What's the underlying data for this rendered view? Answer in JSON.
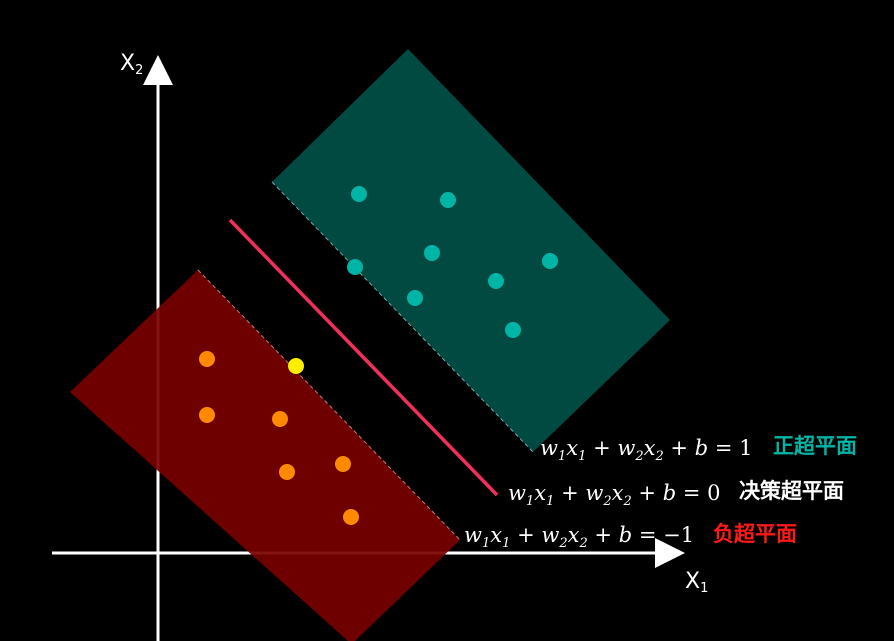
{
  "axes": {
    "y_label": "X",
    "y_sub": "2",
    "x_label": "X",
    "x_sub": "1"
  },
  "regions": {
    "positive_color": "#005048",
    "negative_color": "#770000",
    "line_color": "#f0305a"
  },
  "positive_points": {
    "color": "#00b5a5",
    "items": [
      {
        "id": "p1"
      },
      {
        "id": "p2"
      },
      {
        "id": "p3"
      },
      {
        "id": "p4"
      },
      {
        "id": "p5"
      },
      {
        "id": "p6"
      },
      {
        "id": "p7"
      },
      {
        "id": "p8"
      }
    ]
  },
  "negative_points": {
    "color": "#ff8a00",
    "support_color": "#ffee00",
    "items": [
      {
        "id": "n1"
      },
      {
        "id": "n2"
      },
      {
        "id": "n3"
      },
      {
        "id": "n4"
      },
      {
        "id": "n5"
      },
      {
        "id": "n6"
      },
      {
        "id": "n7",
        "support": true
      }
    ]
  },
  "equations": {
    "positive": {
      "rhs": "1",
      "name": "正超平面",
      "name_color": "#00b5a5"
    },
    "decision": {
      "rhs": "0",
      "name": "决策超平面",
      "name_color": "#ffffff"
    },
    "negative": {
      "rhs": "−1",
      "name": "负超平面",
      "name_color": "#ff1a1a"
    }
  }
}
